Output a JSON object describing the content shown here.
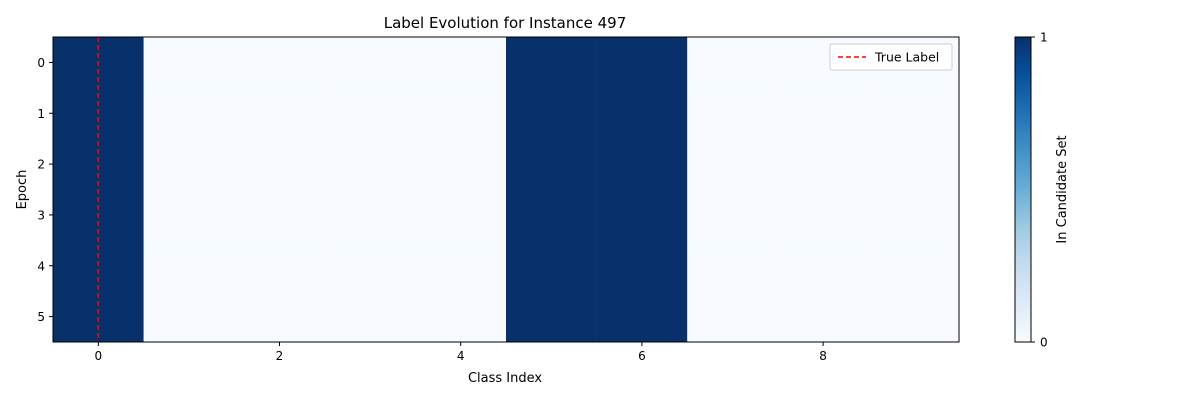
{
  "chart_data": {
    "type": "heatmap",
    "title": "Label Evolution for Instance 497",
    "xlabel": "Class Index",
    "ylabel": "Epoch",
    "x_ticks": [
      0,
      2,
      4,
      6,
      8
    ],
    "y_ticks": [
      0,
      1,
      2,
      3,
      4,
      5
    ],
    "xlim": [
      -0.5,
      9.5
    ],
    "ylim": [
      -0.5,
      5.5
    ],
    "rows": 6,
    "cols": 10,
    "matrix": [
      [
        1,
        0,
        0,
        0,
        0,
        1,
        1,
        0,
        0,
        0
      ],
      [
        1,
        0,
        0,
        0,
        0,
        1,
        1,
        0,
        0,
        0
      ],
      [
        1,
        0,
        0,
        0,
        0,
        1,
        1,
        0,
        0,
        0
      ],
      [
        1,
        0,
        0,
        0,
        0,
        1,
        1,
        0,
        0,
        0
      ],
      [
        1,
        0,
        0,
        0,
        0,
        1,
        1,
        0,
        0,
        0
      ],
      [
        1,
        0,
        0,
        0,
        0,
        1,
        1,
        0,
        0,
        0
      ]
    ],
    "true_label": 0,
    "legend": {
      "label": "True Label",
      "placement": "top-right"
    },
    "colorbar": {
      "label": "In Candidate Set",
      "ticks": [
        0,
        1
      ]
    },
    "colors": {
      "low": "#f7fbff",
      "high": "#08306b",
      "true_label_line": "#ff0000"
    },
    "grid": false
  }
}
